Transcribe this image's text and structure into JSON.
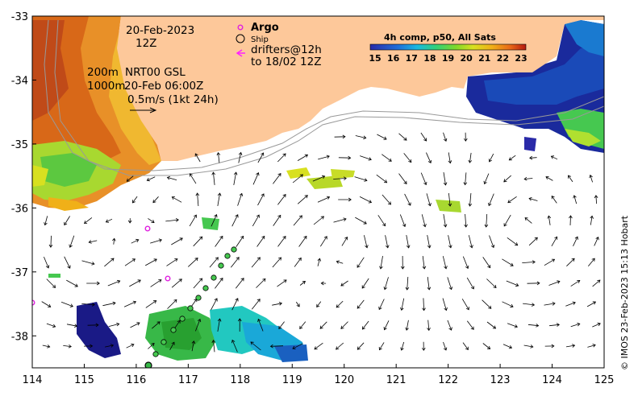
{
  "map": {
    "date_label": "20-Feb-2023",
    "time_label": "12Z",
    "contour_depth_1": "200m",
    "contour_depth_2": "1000m",
    "current_source": "NRT00 GSL",
    "current_time": "20-Feb 06:00Z",
    "scale_label": "0.5m/s (1kt 24h)",
    "legend": {
      "argo": "Argo",
      "ship": "Ship",
      "drifters_line1": "drifters@12h",
      "drifters_line2": "to 18/02 12Z"
    },
    "colorbar": {
      "title": "4h comp, p50, All Sats",
      "ticks": [
        "15",
        "16",
        "17",
        "18",
        "19",
        "20",
        "21",
        "22",
        "23"
      ],
      "colors": [
        "#2a2aa8",
        "#1f6fd8",
        "#19b8e0",
        "#2fd07a",
        "#7fd82a",
        "#d8e020",
        "#f0b018",
        "#e86818",
        "#b41a10"
      ]
    },
    "x_ticks": [
      "114",
      "115",
      "116",
      "117",
      "118",
      "119",
      "120",
      "121",
      "122",
      "123",
      "124",
      "125"
    ],
    "y_ticks": [
      "-33",
      "-34",
      "-35",
      "-36",
      "-37",
      "-38"
    ],
    "xlim": [
      114,
      125
    ],
    "ylim": [
      -38.5,
      -33
    ],
    "credit": "© IMOS 23-Feb-2023 15:13 Hobart",
    "colors": {
      "land": "#fdc89a",
      "argo": "#e020e0",
      "drifter": "#ff20ff"
    }
  }
}
